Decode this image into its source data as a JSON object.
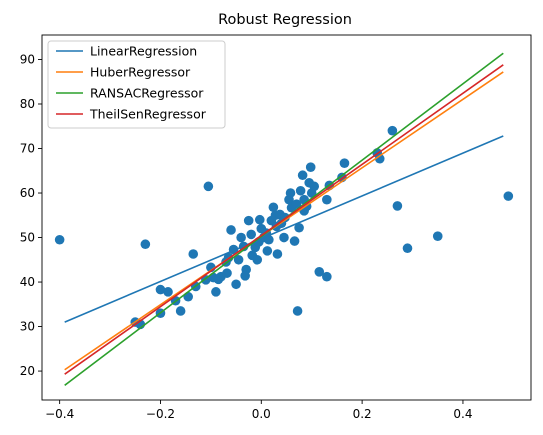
{
  "chart_data": {
    "type": "scatter",
    "title": "Robust Regression",
    "xlabel": "",
    "ylabel": "",
    "xlim": [
      -0.435,
      0.535
    ],
    "ylim": [
      13.5,
      95.5
    ],
    "xticks": [
      -0.4,
      -0.2,
      0.0,
      0.2,
      0.4
    ],
    "xtick_labels": [
      "−0.4",
      "−0.2",
      "0.0",
      "0.2",
      "0.4"
    ],
    "yticks": [
      20,
      30,
      40,
      50,
      60,
      70,
      80,
      90
    ],
    "ytick_labels": [
      "20",
      "30",
      "40",
      "50",
      "60",
      "70",
      "80",
      "90"
    ],
    "grid": false,
    "legend_position": "top-left",
    "scatter": {
      "color": "#1f77b4",
      "points": [
        [
          -0.4,
          49.5
        ],
        [
          -0.23,
          48.5
        ],
        [
          -0.25,
          31.0
        ],
        [
          -0.24,
          30.5
        ],
        [
          -0.2,
          38.3
        ],
        [
          -0.185,
          37.8
        ],
        [
          -0.2,
          33.0
        ],
        [
          -0.17,
          35.8
        ],
        [
          -0.16,
          33.5
        ],
        [
          -0.145,
          36.7
        ],
        [
          -0.13,
          39.0
        ],
        [
          -0.135,
          46.3
        ],
        [
          -0.105,
          61.5
        ],
        [
          -0.1,
          43.3
        ],
        [
          -0.095,
          41.0
        ],
        [
          -0.09,
          37.8
        ],
        [
          -0.085,
          40.6
        ],
        [
          -0.08,
          41.2
        ],
        [
          -0.07,
          44.5
        ],
        [
          -0.065,
          45.5
        ],
        [
          -0.06,
          51.7
        ],
        [
          -0.055,
          47.3
        ],
        [
          -0.05,
          39.5
        ],
        [
          -0.045,
          45.0
        ],
        [
          -0.04,
          50.0
        ],
        [
          -0.035,
          48.0
        ],
        [
          -0.03,
          42.8
        ],
        [
          -0.032,
          41.4
        ],
        [
          -0.025,
          53.8
        ],
        [
          -0.02,
          50.7
        ],
        [
          -0.018,
          46.0
        ],
        [
          -0.012,
          47.8
        ],
        [
          -0.008,
          45.0
        ],
        [
          -0.005,
          49.0
        ],
        [
          -0.003,
          54.0
        ],
        [
          0.0,
          52.0
        ],
        [
          0.005,
          50.0
        ],
        [
          0.01,
          51.0
        ],
        [
          0.015,
          49.5
        ],
        [
          0.02,
          53.8
        ],
        [
          0.024,
          56.8
        ],
        [
          0.028,
          55.0
        ],
        [
          0.03,
          52.5
        ],
        [
          0.032,
          46.3
        ],
        [
          0.037,
          55.2
        ],
        [
          0.04,
          53.2
        ],
        [
          0.045,
          50.0
        ],
        [
          0.047,
          54.5
        ],
        [
          0.055,
          58.5
        ],
        [
          0.058,
          60.0
        ],
        [
          0.06,
          56.7
        ],
        [
          0.066,
          49.2
        ],
        [
          0.07,
          57.5
        ],
        [
          0.072,
          33.5
        ],
        [
          0.075,
          52.2
        ],
        [
          0.078,
          60.5
        ],
        [
          0.082,
          64.0
        ],
        [
          0.085,
          58.5
        ],
        [
          0.09,
          57.0
        ],
        [
          0.095,
          62.3
        ],
        [
          0.098,
          65.8
        ],
        [
          0.1,
          60.0
        ],
        [
          0.105,
          61.5
        ],
        [
          0.115,
          42.3
        ],
        [
          0.13,
          41.2
        ],
        [
          0.13,
          58.5
        ],
        [
          0.135,
          61.7
        ],
        [
          0.16,
          63.5
        ],
        [
          0.165,
          66.7
        ],
        [
          0.23,
          69.0
        ],
        [
          0.235,
          67.7
        ],
        [
          0.26,
          74.0
        ],
        [
          0.27,
          57.1
        ],
        [
          0.29,
          47.6
        ],
        [
          0.35,
          50.3
        ],
        [
          0.49,
          59.3
        ],
        [
          0.085,
          56.0
        ],
        [
          -0.068,
          42.0
        ],
        [
          -0.11,
          40.5
        ],
        [
          0.012,
          47.0
        ]
      ]
    },
    "series": [
      {
        "name": "LinearRegression",
        "color": "#1f77b4",
        "x": [
          -0.39,
          0.48
        ],
        "y": [
          31.0,
          72.8
        ]
      },
      {
        "name": "HuberRegressor",
        "color": "#ff7f0e",
        "x": [
          -0.39,
          0.48
        ],
        "y": [
          20.3,
          87.2
        ]
      },
      {
        "name": "RANSACRegressor",
        "color": "#2ca02c",
        "x": [
          -0.39,
          0.48
        ],
        "y": [
          16.8,
          91.4
        ]
      },
      {
        "name": "TheilSenRegressor",
        "color": "#d62728",
        "x": [
          -0.39,
          0.48
        ],
        "y": [
          19.3,
          88.8
        ]
      }
    ]
  }
}
